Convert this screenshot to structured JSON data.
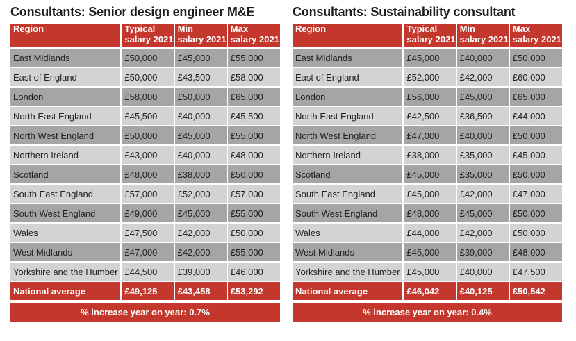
{
  "tables": [
    {
      "title": "Consultants: Senior design engineer M&E",
      "headers": {
        "region": "Region",
        "typical_1": "Typical",
        "typical_2": "salary 2021",
        "min_1": "Min",
        "min_2": "salary 2021",
        "max_1": "Max",
        "max_2": "salary 2021"
      },
      "rows": [
        [
          "East Midlands",
          "£50,000",
          "£45,000",
          "£55,000"
        ],
        [
          "East of England",
          "£50,000",
          "£43,500",
          "£58,000"
        ],
        [
          "London",
          "£58,000",
          "£50,000",
          "£65,000"
        ],
        [
          "North East England",
          "£45,500",
          "£40,000",
          "£45,500"
        ],
        [
          "North West England",
          "£50,000",
          "£45,000",
          "£55,000"
        ],
        [
          "Northern Ireland",
          "£43,000",
          "£40,000",
          "£48,000"
        ],
        [
          "Scotland",
          "£48,000",
          "£38,000",
          "£50,000"
        ],
        [
          "South East England",
          "£57,000",
          "£52,000",
          "£57,000"
        ],
        [
          "South West England",
          "£49,000",
          "£45,000",
          "£55,000"
        ],
        [
          "Wales",
          "£47,500",
          "£42,000",
          "£50,000"
        ],
        [
          "West Midlands",
          "£47,000",
          "£42,000",
          "£55,000"
        ],
        [
          "Yorkshire and the Humber",
          "£44,500",
          "£39,000",
          "£46,000"
        ]
      ],
      "average": [
        "National average",
        "£49,125",
        "£43,458",
        "£53,292"
      ],
      "footer": "% increase year on year: 0.7%"
    },
    {
      "title": "Consultants: Sustainability consultant",
      "headers": {
        "region": "Region",
        "typical_1": "Typical",
        "typical_2": "salary 2021",
        "min_1": "Min",
        "min_2": "salary 2021",
        "max_1": "Max",
        "max_2": "salary 2021"
      },
      "rows": [
        [
          "East Midlands",
          "£45,000",
          "£40,000",
          "£50,000"
        ],
        [
          "East of England",
          "£52,000",
          "£42,000",
          "£60,000"
        ],
        [
          "London",
          "£56,000",
          "£45,000",
          "£65,000"
        ],
        [
          "North East England",
          "£42,500",
          "£36,500",
          "£44,000"
        ],
        [
          "North West England",
          "£47,000",
          "£40,000",
          "£50,000"
        ],
        [
          "Northern Ireland",
          "£38,000",
          "£35,000",
          "£45,000"
        ],
        [
          "Scotland",
          "£45,000",
          "£35,000",
          "£50,000"
        ],
        [
          "South East England",
          "£45,000",
          "£42,000",
          "£47,000"
        ],
        [
          "South West England",
          "£48,000",
          "£45,000",
          "£50,000"
        ],
        [
          "Wales",
          "£44,000",
          "£42,000",
          "£50,000"
        ],
        [
          "West Midlands",
          "£45,000",
          "£39,000",
          "£48,000"
        ],
        [
          "Yorkshire and the Humber",
          "£45,000",
          "£40,000",
          "£47,500"
        ]
      ],
      "average": [
        "National average",
        "£46,042",
        "£40,125",
        "£50,542"
      ],
      "footer": "% increase year on year: 0.4%"
    }
  ]
}
